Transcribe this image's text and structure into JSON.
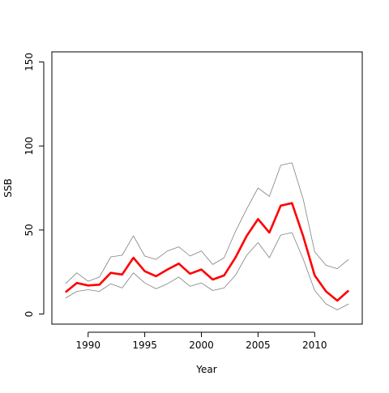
{
  "chart_data": {
    "type": "line",
    "title": "",
    "xlabel": "Year",
    "ylabel": "SSB",
    "xlim": [
      1986.8,
      2014.2
    ],
    "ylim": [
      -6,
      156
    ],
    "xticks": [
      1990,
      1995,
      2000,
      2005,
      2010
    ],
    "yticks": [
      0,
      50,
      100,
      150
    ],
    "grid": false,
    "legend": "none",
    "x": [
      1988,
      1989,
      1990,
      1991,
      1992,
      1993,
      1994,
      1995,
      1996,
      1997,
      1998,
      1999,
      2000,
      2001,
      2002,
      2003,
      2004,
      2005,
      2006,
      2007,
      2008,
      2009,
      2010,
      2011,
      2012,
      2013
    ],
    "series": [
      {
        "role": "upper",
        "color": "#808080",
        "values": [
          18,
          24.5,
          19.5,
          22,
          34,
          35,
          46.5,
          34.5,
          32.5,
          37.5,
          40,
          34.5,
          37.5,
          29.5,
          33.5,
          49,
          62.5,
          75,
          70,
          88.5,
          90,
          68,
          37,
          29,
          27,
          32.5
        ]
      },
      {
        "role": "estimate",
        "color": "#ff0000",
        "values": [
          13,
          18.5,
          17,
          17.5,
          24.5,
          23.5,
          33.5,
          25.5,
          22.5,
          26.5,
          30,
          24,
          26.5,
          20.5,
          23,
          33.5,
          46.5,
          56.5,
          48.5,
          64.5,
          66,
          46,
          23,
          13.5,
          8,
          14
        ]
      },
      {
        "role": "lower",
        "color": "#808080",
        "values": [
          9.5,
          13.5,
          14.5,
          13.5,
          18,
          15.5,
          24.5,
          18.5,
          15,
          18,
          22,
          16.5,
          18.5,
          14,
          15.5,
          23,
          35,
          42.5,
          33.5,
          47,
          48.5,
          32.5,
          14,
          6,
          2.5,
          6
        ]
      }
    ]
  }
}
